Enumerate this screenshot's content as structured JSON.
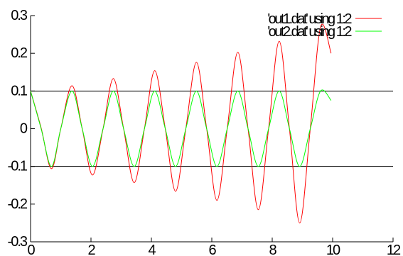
{
  "chart_data": {
    "type": "line",
    "title": "",
    "xlabel": "",
    "ylabel": "",
    "xlim": [
      0,
      12
    ],
    "ylim": [
      -0.3,
      0.3
    ],
    "grid": false,
    "legend_position": "top-right",
    "x_ticks": [
      {
        "value": 0,
        "label": "0"
      },
      {
        "value": 2,
        "label": "2"
      },
      {
        "value": 4,
        "label": "4"
      },
      {
        "value": 6,
        "label": "6"
      },
      {
        "value": 8,
        "label": "8"
      },
      {
        "value": 10,
        "label": "10"
      },
      {
        "value": 12,
        "label": "12"
      }
    ],
    "y_ticks": [
      {
        "value": -0.3,
        "label": "-0.3"
      },
      {
        "value": -0.2,
        "label": "-0.2"
      },
      {
        "value": -0.1,
        "label": "-0.1"
      },
      {
        "value": 0,
        "label": "0"
      },
      {
        "value": 0.1,
        "label": "0.1"
      },
      {
        "value": 0.2,
        "label": "0.2"
      },
      {
        "value": 0.3,
        "label": "0.3"
      }
    ],
    "reference_lines_y": [
      0.1,
      -0.1
    ],
    "series": [
      {
        "name": "'out1.dat' using 1:2",
        "color": "#ff0000",
        "x": [
          0,
          0.35,
          0.69,
          1.0,
          1.37,
          1.71,
          2.05,
          2.4,
          2.74,
          3.08,
          3.43,
          3.77,
          4.11,
          4.46,
          4.8,
          5.14,
          5.49,
          5.83,
          6.17,
          6.51,
          6.86,
          7.2,
          7.54,
          7.88,
          8.23,
          8.57,
          8.91,
          9.26,
          9.6,
          9.95
        ],
        "y": [
          0.1,
          0.002,
          -0.106,
          0.0,
          0.114,
          0.0,
          -0.123,
          0.0,
          0.133,
          0.0,
          -0.143,
          0.0,
          0.154,
          0.0,
          -0.166,
          0.0,
          0.176,
          0.0,
          -0.19,
          0.0,
          0.203,
          0.0,
          -0.215,
          0.0,
          0.232,
          0.0,
          -0.25,
          0.0,
          0.27,
          0.2
        ]
      },
      {
        "name": "'out2.dat' using 1:2",
        "color": "#00ff00",
        "x": [
          0,
          0.35,
          0.69,
          1.0,
          1.37,
          1.71,
          2.05,
          2.4,
          2.74,
          3.08,
          3.43,
          3.77,
          4.11,
          4.46,
          4.8,
          5.14,
          5.49,
          5.83,
          6.17,
          6.51,
          6.86,
          7.2,
          7.54,
          7.88,
          8.23,
          8.57,
          8.91,
          9.26,
          9.6,
          9.95
        ],
        "y": [
          0.1,
          0.0,
          -0.1,
          0.0,
          0.1,
          0.0,
          -0.1,
          0.0,
          0.1,
          0.0,
          -0.1,
          0.0,
          0.1,
          0.0,
          -0.1,
          0.0,
          0.1,
          0.0,
          -0.1,
          0.0,
          0.1,
          0.0,
          -0.1,
          0.0,
          0.1,
          0.0,
          -0.1,
          0.0,
          0.1,
          0.075
        ]
      }
    ]
  }
}
